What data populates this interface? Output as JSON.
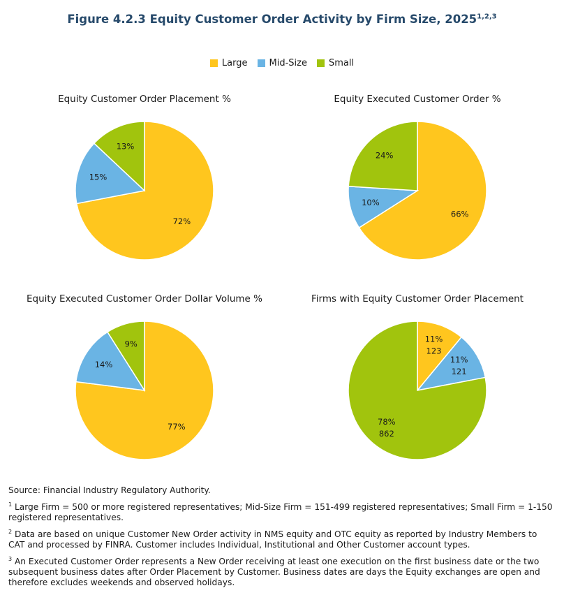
{
  "figure": {
    "title": "Figure 4.2.3 Equity Customer Order Activity by Firm Size, 2025",
    "title_superscript": "1,2,3"
  },
  "legend": [
    {
      "label": "Large",
      "color": "#FFC61E"
    },
    {
      "label": "Mid-Size",
      "color": "#6AB4E4"
    },
    {
      "label": "Small",
      "color": "#A1C40D"
    }
  ],
  "chart_data": [
    {
      "type": "pie",
      "title": "Equity Customer Order Placement %",
      "slices": [
        {
          "name": "Large",
          "value": 72,
          "label": "72%",
          "color": "#FFC61E"
        },
        {
          "name": "Mid-Size",
          "value": 15,
          "label": "15%",
          "color": "#6AB4E4"
        },
        {
          "name": "Small",
          "value": 13,
          "label": "13%",
          "color": "#A1C40D"
        }
      ]
    },
    {
      "type": "pie",
      "title": "Equity Executed Customer Order %",
      "slices": [
        {
          "name": "Large",
          "value": 66,
          "label": "66%",
          "color": "#FFC61E"
        },
        {
          "name": "Mid-Size",
          "value": 10,
          "label": "10%",
          "color": "#6AB4E4"
        },
        {
          "name": "Small",
          "value": 24,
          "label": "24%",
          "color": "#A1C40D"
        }
      ]
    },
    {
      "type": "pie",
      "title": "Equity Executed Customer Order Dollar Volume %",
      "slices": [
        {
          "name": "Large",
          "value": 77,
          "label": "77%",
          "color": "#FFC61E"
        },
        {
          "name": "Mid-Size",
          "value": 14,
          "label": "14%",
          "color": "#6AB4E4"
        },
        {
          "name": "Small",
          "value": 9,
          "label": "9%",
          "color": "#A1C40D"
        }
      ]
    },
    {
      "type": "pie",
      "title": "Firms with Equity Customer Order Placement",
      "slices": [
        {
          "name": "Large",
          "value": 11,
          "count": 123,
          "label": "11%",
          "sublabel": "123",
          "color": "#FFC61E"
        },
        {
          "name": "Mid-Size",
          "value": 11,
          "count": 121,
          "label": "11%",
          "sublabel": "121",
          "color": "#6AB4E4"
        },
        {
          "name": "Small",
          "value": 78,
          "count": 862,
          "label": "78%",
          "sublabel": "862",
          "color": "#A1C40D"
        }
      ]
    }
  ],
  "notes": {
    "source": "Source: Financial Industry Regulatory Authority.",
    "footnotes": [
      {
        "mark": "1",
        "text": "Large Firm = 500 or more registered representatives; Mid-Size Firm = 151-499 registered representatives; Small Firm = 1-150 registered representatives."
      },
      {
        "mark": "2",
        "text": "Data are based on unique Customer New Order activity in NMS equity and OTC equity as reported by Industry Members to CAT and processed by FINRA. Customer includes Individual, Institutional and Other Customer account types."
      },
      {
        "mark": "3",
        "text": "An Executed Customer Order represents a New Order receiving at least one execution on the first business date or the two subsequent business dates after Order Placement by Customer. Business dates are days the Equity exchanges are open and therefore excludes weekends and observed holidays."
      }
    ]
  }
}
